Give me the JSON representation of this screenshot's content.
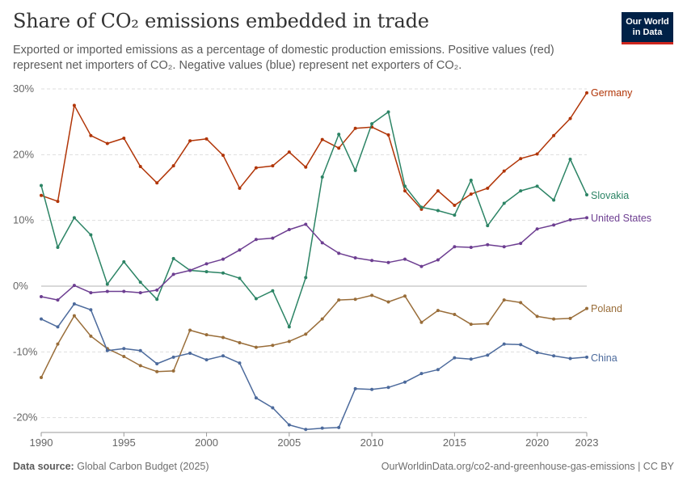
{
  "header": {
    "title": "Share of CO₂ emissions embedded in trade",
    "subtitle": "Exported or imported emissions as a percentage of domestic production emissions. Positive values (red) represent net importers of CO₂. Negative values (blue) represent net exporters of CO₂.",
    "logo_line1": "Our World",
    "logo_line2": "in Data"
  },
  "footer": {
    "source_label": "Data source:",
    "source_text": "Global Carbon Budget (2025)",
    "url": "OurWorldinData.org/co2-and-greenhouse-gas-emissions | CC BY"
  },
  "colors": {
    "Germany": "#b13507",
    "Slovakia": "#2c8465",
    "United States": "#6d3e91",
    "Poland": "#996d39",
    "China": "#4c6a9c",
    "grid": "#dddddd",
    "zero": "#b3b3b3"
  },
  "chart_data": {
    "type": "line",
    "xlim": [
      1990,
      2023
    ],
    "ylim": [
      -22,
      30
    ],
    "x_ticks": [
      1990,
      1995,
      2000,
      2005,
      2010,
      2015,
      2020,
      2023
    ],
    "x_tick_labels": [
      "1990",
      "1995",
      "2000",
      "2005",
      "2010",
      "2015",
      "2020",
      "2023"
    ],
    "y_ticks": [
      -20,
      -10,
      0,
      10,
      20,
      30
    ],
    "y_tick_labels": [
      "-20%",
      "-10%",
      "0%",
      "10%",
      "20%",
      "30%"
    ],
    "grid": "horizontal dashed",
    "x": [
      1990,
      1991,
      1992,
      1993,
      1994,
      1995,
      1996,
      1997,
      1998,
      1999,
      2000,
      2001,
      2002,
      2003,
      2004,
      2005,
      2006,
      2007,
      2008,
      2009,
      2010,
      2011,
      2012,
      2013,
      2014,
      2015,
      2016,
      2017,
      2018,
      2019,
      2020,
      2021,
      2022,
      2023
    ],
    "series": [
      {
        "name": "Germany",
        "values": [
          13.8,
          12.9,
          27.5,
          22.9,
          21.7,
          22.5,
          18.2,
          15.7,
          18.3,
          22.1,
          22.4,
          19.9,
          14.9,
          18.0,
          18.3,
          20.4,
          18.1,
          22.3,
          21.0,
          24.0,
          24.2,
          23.0,
          14.5,
          11.7,
          14.5,
          12.3,
          14.0,
          14.9,
          17.5,
          19.4,
          20.1,
          22.9,
          25.5,
          29.4
        ]
      },
      {
        "name": "Slovakia",
        "values": [
          15.3,
          5.9,
          10.4,
          7.8,
          0.3,
          3.7,
          0.6,
          -2.0,
          4.2,
          2.4,
          2.2,
          2.0,
          1.2,
          -1.9,
          -0.7,
          -6.2,
          1.3,
          16.6,
          23.1,
          17.6,
          24.7,
          26.5,
          15.2,
          12.0,
          11.5,
          10.8,
          16.1,
          9.2,
          12.6,
          14.5,
          15.2,
          13.1,
          19.3,
          13.9
        ]
      },
      {
        "name": "United States",
        "values": [
          -1.6,
          -2.1,
          0.1,
          -1.0,
          -0.8,
          -0.8,
          -1.0,
          -0.6,
          1.8,
          2.4,
          3.4,
          4.1,
          5.5,
          7.1,
          7.3,
          8.6,
          9.4,
          6.6,
          5.0,
          4.3,
          3.9,
          3.6,
          4.1,
          3.0,
          4.0,
          6.0,
          5.9,
          6.3,
          6.0,
          6.5,
          8.7,
          9.3,
          10.1,
          10.4
        ]
      },
      {
        "name": "Poland",
        "values": [
          -13.9,
          -8.8,
          -4.5,
          -7.6,
          -9.5,
          -10.7,
          -12.1,
          -13.0,
          -12.9,
          -6.7,
          -7.4,
          -7.8,
          -8.6,
          -9.3,
          -9.0,
          -8.4,
          -7.3,
          -5.0,
          -2.1,
          -2.0,
          -1.4,
          -2.4,
          -1.5,
          -5.5,
          -3.7,
          -4.3,
          -5.8,
          -5.7,
          -2.1,
          -2.5,
          -4.6,
          -5.0,
          -4.9,
          -3.4
        ]
      },
      {
        "name": "China",
        "values": [
          -5.0,
          -6.2,
          -2.7,
          -3.6,
          -9.8,
          -9.5,
          -9.8,
          -11.8,
          -10.8,
          -10.2,
          -11.2,
          -10.6,
          -11.7,
          -17.0,
          -18.5,
          -21.1,
          -21.8,
          -21.6,
          -21.5,
          -15.6,
          -15.7,
          -15.4,
          -14.6,
          -13.3,
          -12.7,
          -10.9,
          -11.1,
          -10.5,
          -8.8,
          -8.9,
          -10.1,
          -10.6,
          -11.0,
          -10.8
        ]
      }
    ]
  }
}
